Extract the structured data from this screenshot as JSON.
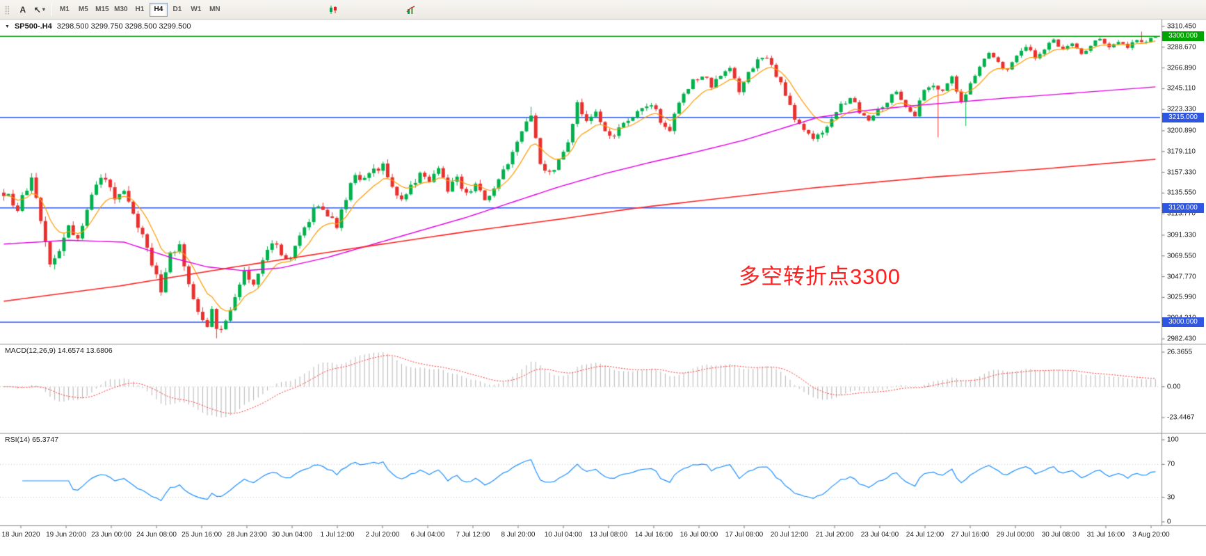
{
  "toolbar": {
    "grip_glyph": "⣿",
    "annotation_tool_label": "A",
    "cursor_tool_glyph": "↖",
    "dropdown_caret_glyph": "▾",
    "timeframes": [
      "M1",
      "M5",
      "M15",
      "M30",
      "H1",
      "H4",
      "D1",
      "W1",
      "MN"
    ],
    "active_timeframe": "H4"
  },
  "chart": {
    "menu_glyph": "▼",
    "title": "SP500-.H4",
    "ohlc": "3298.500 3299.750 3298.500 3299.500",
    "annotation": {
      "text": "多空转折点3300",
      "color": "#ff1f1f"
    },
    "price_scale_labels": [
      "3310.450",
      "3288.670",
      "3266.890",
      "3245.110",
      "3223.330",
      "3200.890",
      "3179.110",
      "3157.330",
      "3135.550",
      "3113.770",
      "3091.330",
      "3069.550",
      "3047.770",
      "3025.990",
      "3004.210",
      "2982.430"
    ]
  },
  "macd": {
    "label": "MACD(12,26,9) 14.6574 13.6806",
    "main_value": 14.6574,
    "signal_value": 13.6806,
    "scale": [
      {
        "label": "26.3655",
        "value": 26.3655
      },
      {
        "label": "0.00",
        "value": 0
      },
      {
        "label": "-23.4467",
        "value": -23.4467
      }
    ],
    "histogram_color": "#b4b4b4",
    "signal_color": "#ff3232"
  },
  "rsi": {
    "label": "RSI(14) 65.3747",
    "value": 65.3747,
    "levels": [
      70,
      30
    ],
    "line_color": "#1e90ff",
    "scale": [
      {
        "label": "100",
        "value": 100
      },
      {
        "label": "70",
        "value": 70
      },
      {
        "label": "30",
        "value": 30
      },
      {
        "label": "0",
        "value": 0
      }
    ]
  },
  "chart_data": {
    "type": "candlestick",
    "symbol": "SP500-",
    "period": "H4",
    "bar_count": 250,
    "y_range": [
      2982.43,
      3310.45
    ],
    "up_color": "#00b14c",
    "down_color": "#e8312e",
    "last_bar": {
      "open": 3298.5,
      "high": 3299.75,
      "low": 3298.5,
      "close": 3299.5
    },
    "price_anchors": [
      [
        0,
        3136
      ],
      [
        3,
        3120
      ],
      [
        6,
        3148
      ],
      [
        8,
        3105
      ],
      [
        10,
        3062
      ],
      [
        12,
        3075
      ],
      [
        14,
        3100
      ],
      [
        16,
        3086
      ],
      [
        20,
        3146
      ],
      [
        22,
        3150
      ],
      [
        24,
        3128
      ],
      [
        26,
        3140
      ],
      [
        28,
        3110
      ],
      [
        30,
        3092
      ],
      [
        32,
        3060
      ],
      [
        34,
        3035
      ],
      [
        36,
        3070
      ],
      [
        38,
        3084
      ],
      [
        40,
        3040
      ],
      [
        42,
        3008
      ],
      [
        44,
        2996
      ],
      [
        45,
        3012
      ],
      [
        46,
        2990
      ],
      [
        48,
        2998
      ],
      [
        50,
        3030
      ],
      [
        52,
        3053
      ],
      [
        54,
        3042
      ],
      [
        56,
        3065
      ],
      [
        58,
        3085
      ],
      [
        60,
        3072
      ],
      [
        62,
        3064
      ],
      [
        64,
        3090
      ],
      [
        66,
        3108
      ],
      [
        68,
        3125
      ],
      [
        70,
        3112
      ],
      [
        72,
        3102
      ],
      [
        74,
        3130
      ],
      [
        76,
        3155
      ],
      [
        78,
        3148
      ],
      [
        80,
        3158
      ],
      [
        82,
        3165
      ],
      [
        84,
        3142
      ],
      [
        86,
        3130
      ],
      [
        88,
        3142
      ],
      [
        90,
        3155
      ],
      [
        92,
        3148
      ],
      [
        94,
        3160
      ],
      [
        96,
        3140
      ],
      [
        98,
        3152
      ],
      [
        100,
        3133
      ],
      [
        102,
        3148
      ],
      [
        104,
        3126
      ],
      [
        106,
        3140
      ],
      [
        108,
        3158
      ],
      [
        110,
        3178
      ],
      [
        112,
        3198
      ],
      [
        114,
        3218
      ],
      [
        115,
        3195
      ],
      [
        116,
        3168
      ],
      [
        118,
        3155
      ],
      [
        120,
        3168
      ],
      [
        122,
        3190
      ],
      [
        124,
        3228
      ],
      [
        126,
        3212
      ],
      [
        128,
        3222
      ],
      [
        130,
        3200
      ],
      [
        132,
        3196
      ],
      [
        134,
        3208
      ],
      [
        136,
        3215
      ],
      [
        138,
        3222
      ],
      [
        140,
        3230
      ],
      [
        142,
        3212
      ],
      [
        144,
        3200
      ],
      [
        145,
        3218
      ],
      [
        147,
        3240
      ],
      [
        149,
        3252
      ],
      [
        151,
        3260
      ],
      [
        153,
        3248
      ],
      [
        155,
        3258
      ],
      [
        157,
        3266
      ],
      [
        159,
        3242
      ],
      [
        161,
        3262
      ],
      [
        163,
        3275
      ],
      [
        165,
        3278
      ],
      [
        167,
        3260
      ],
      [
        169,
        3240
      ],
      [
        171,
        3214
      ],
      [
        173,
        3200
      ],
      [
        175,
        3192
      ],
      [
        177,
        3200
      ],
      [
        179,
        3214
      ],
      [
        181,
        3228
      ],
      [
        183,
        3236
      ],
      [
        185,
        3222
      ],
      [
        187,
        3214
      ],
      [
        189,
        3224
      ],
      [
        191,
        3232
      ],
      [
        193,
        3244
      ],
      [
        195,
        3224
      ],
      [
        197,
        3218
      ],
      [
        199,
        3244
      ],
      [
        201,
        3250
      ],
      [
        203,
        3242
      ],
      [
        205,
        3258
      ],
      [
        207,
        3230
      ],
      [
        209,
        3252
      ],
      [
        211,
        3270
      ],
      [
        213,
        3282
      ],
      [
        215,
        3272
      ],
      [
        217,
        3264
      ],
      [
        219,
        3282
      ],
      [
        221,
        3290
      ],
      [
        223,
        3278
      ],
      [
        225,
        3288
      ],
      [
        227,
        3295
      ],
      [
        229,
        3285
      ],
      [
        231,
        3292
      ],
      [
        233,
        3282
      ],
      [
        235,
        3292
      ],
      [
        237,
        3299
      ],
      [
        239,
        3288
      ],
      [
        241,
        3296
      ],
      [
        243,
        3290
      ],
      [
        245,
        3298
      ],
      [
        247,
        3294
      ],
      [
        249,
        3299.5
      ]
    ],
    "wick_spikes": [
      [
        46,
        2983,
        "low"
      ],
      [
        114,
        3226,
        "high"
      ],
      [
        202,
        3194,
        "low"
      ],
      [
        208,
        3206,
        "low"
      ],
      [
        246,
        3305,
        "high"
      ]
    ],
    "overlays": {
      "ma_fast": {
        "type": "ema",
        "period": 9,
        "color": "#ff9a00"
      },
      "ma_mid": {
        "color": "#e400e4",
        "anchors": [
          [
            0,
            3082
          ],
          [
            14,
            3086
          ],
          [
            26,
            3084
          ],
          [
            36,
            3068
          ],
          [
            44,
            3058
          ],
          [
            52,
            3054
          ],
          [
            60,
            3057
          ],
          [
            70,
            3068
          ],
          [
            80,
            3082
          ],
          [
            90,
            3096
          ],
          [
            100,
            3110
          ],
          [
            110,
            3126
          ],
          [
            120,
            3142
          ],
          [
            130,
            3156
          ],
          [
            140,
            3168
          ],
          [
            150,
            3179
          ],
          [
            160,
            3191
          ],
          [
            170,
            3206
          ],
          [
            176,
            3215
          ],
          [
            186,
            3222
          ],
          [
            196,
            3227
          ],
          [
            206,
            3231
          ],
          [
            216,
            3235
          ],
          [
            230,
            3240
          ],
          [
            249,
            3247
          ]
        ]
      },
      "ma_slow": {
        "color": "#ff2222",
        "anchors": [
          [
            0,
            3022
          ],
          [
            25,
            3038
          ],
          [
            50,
            3058
          ],
          [
            75,
            3077
          ],
          [
            100,
            3095
          ],
          [
            120,
            3108
          ],
          [
            137,
            3120
          ],
          [
            155,
            3130
          ],
          [
            175,
            3141
          ],
          [
            200,
            3152
          ],
          [
            225,
            3161
          ],
          [
            249,
            3171
          ]
        ]
      }
    },
    "levels": [
      {
        "price": 3300,
        "label": "3300.000",
        "color": "#00a400"
      },
      {
        "price": 3215,
        "label": "3215.000",
        "color": "#2e56e0"
      },
      {
        "price": 3120,
        "label": "3120.000",
        "color": "#2e56e0"
      },
      {
        "price": 3000,
        "label": "3000.000",
        "color": "#2e56e0"
      }
    ],
    "x_labels": [
      "18 Jun 2020",
      "19 Jun 20:00",
      "23 Jun 00:00",
      "24 Jun 08:00",
      "25 Jun 16:00",
      "28 Jun 23:00",
      "30 Jun 04:00",
      "1 Jul 12:00",
      "2 Jul 20:00",
      "6 Jul 04:00",
      "7 Jul 12:00",
      "8 Jul 20:00",
      "10 Jul 04:00",
      "13 Jul 08:00",
      "14 Jul 16:00",
      "16 Jul 00:00",
      "17 Jul 08:00",
      "20 Jul 12:00",
      "21 Jul 20:00",
      "23 Jul 04:00",
      "24 Jul 12:00",
      "27 Jul 16:00",
      "29 Jul 00:00",
      "30 Jul 08:00",
      "31 Jul 16:00",
      "3 Aug 20:00"
    ]
  }
}
